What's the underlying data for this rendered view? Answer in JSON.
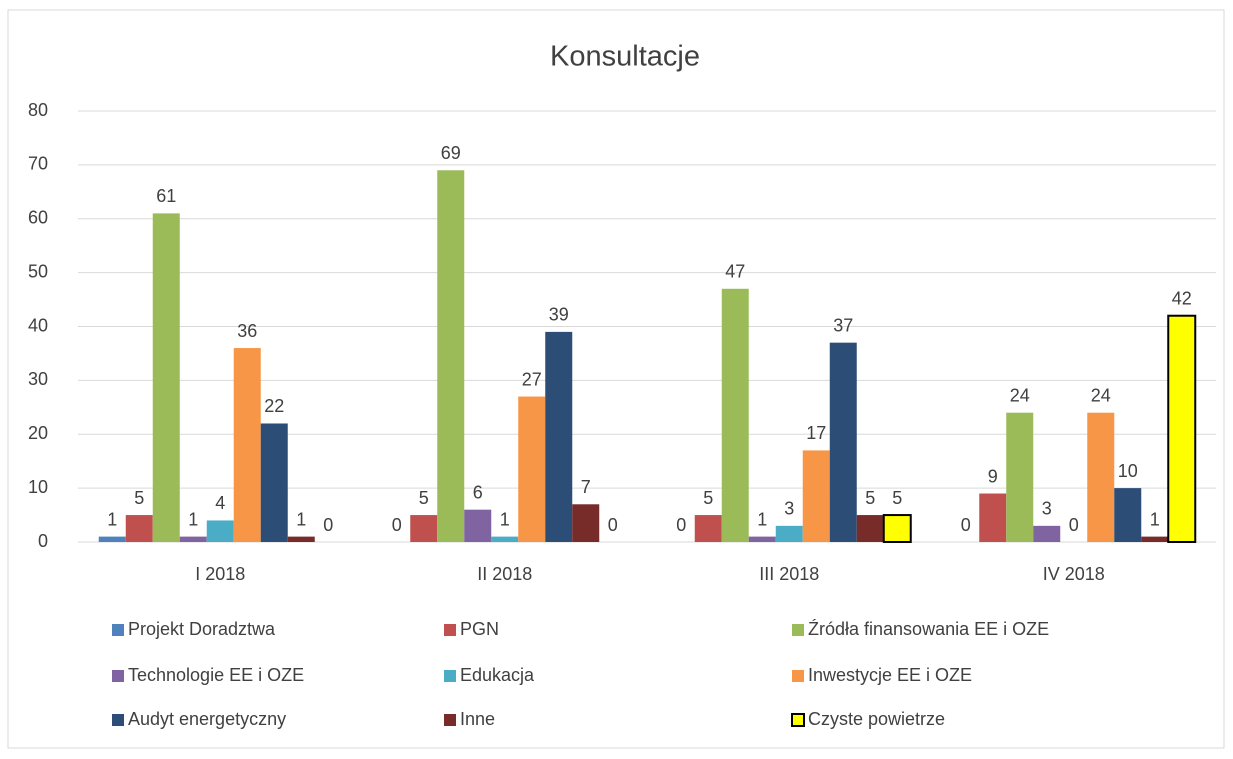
{
  "chart_data": {
    "type": "bar",
    "title": "Konsultacje",
    "categories": [
      "I 2018",
      "II 2018",
      "III 2018",
      "IV 2018"
    ],
    "series": [
      {
        "name": "Projekt Doradztwa",
        "color": "#4f81bd",
        "values": [
          1,
          0,
          0,
          0
        ]
      },
      {
        "name": "PGN",
        "color": "#c0504d",
        "values": [
          5,
          5,
          5,
          9
        ]
      },
      {
        "name": "Źródła finansowania EE i OZE",
        "color": "#9bbb59",
        "values": [
          61,
          69,
          47,
          24
        ]
      },
      {
        "name": "Technologie EE i OZE",
        "color": "#8064a2",
        "values": [
          1,
          6,
          1,
          3
        ]
      },
      {
        "name": "Edukacja",
        "color": "#4bacc6",
        "values": [
          4,
          1,
          3,
          0
        ]
      },
      {
        "name": "Inwestycje EE i OZE",
        "color": "#f79646",
        "values": [
          36,
          27,
          17,
          24
        ]
      },
      {
        "name": "Audyt energetyczny",
        "color": "#2c4d75",
        "values": [
          22,
          39,
          37,
          10
        ]
      },
      {
        "name": "Inne",
        "color": "#772c2a",
        "values": [
          1,
          7,
          5,
          1
        ]
      },
      {
        "name": "Czyste powietrze",
        "color": "#ffff00",
        "edgecolor": "#000000",
        "values": [
          0,
          0,
          5,
          42
        ]
      }
    ],
    "ylim": [
      0,
      80
    ],
    "yticks": [
      0,
      10,
      20,
      30,
      40,
      50,
      60,
      70,
      80
    ],
    "grid": true,
    "legend": "bottom"
  }
}
